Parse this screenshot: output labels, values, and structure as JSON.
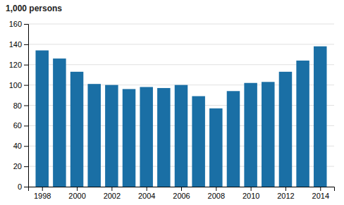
{
  "chart_data": {
    "type": "bar",
    "ylabel": "1,000 persons",
    "x": [
      1998,
      1999,
      2000,
      2001,
      2002,
      2003,
      2004,
      2005,
      2006,
      2007,
      2008,
      2009,
      2010,
      2011,
      2012,
      2013,
      2014
    ],
    "values": [
      134,
      126,
      113,
      101,
      100,
      96,
      98,
      97,
      100,
      89,
      77,
      94,
      102,
      103,
      113,
      124,
      138
    ],
    "color": "#1a6fa5",
    "xlim": [
      1997.2,
      2014.8
    ],
    "xticks": [
      1998,
      2000,
      2002,
      2004,
      2006,
      2008,
      2010,
      2012,
      2014
    ],
    "ylim": [
      0,
      160
    ],
    "yticks": [
      0,
      20,
      40,
      60,
      80,
      100,
      120,
      140,
      160
    ],
    "grid": true
  }
}
